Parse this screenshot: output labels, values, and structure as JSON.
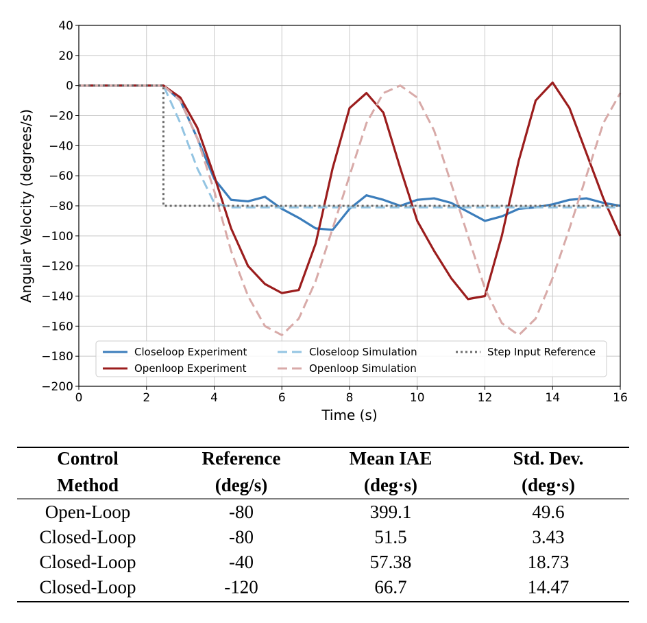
{
  "chart_data": {
    "type": "line",
    "xlabel": "Time (s)",
    "ylabel": "Angular Velocity (degrees/s)",
    "x": [
      0,
      0.5,
      1,
      1.5,
      2,
      2.5,
      3,
      3.5,
      4,
      4.5,
      5,
      5.5,
      6,
      6.5,
      7,
      7.5,
      8,
      8.5,
      9,
      9.5,
      10,
      10.5,
      11,
      11.5,
      12,
      12.5,
      13,
      13.5,
      14,
      14.5,
      15,
      15.5,
      16
    ],
    "series": [
      {
        "name": "Closeloop Experiment",
        "color": "#3b7dbb",
        "style": "solid",
        "values": [
          0,
          0,
          0,
          0,
          0,
          0,
          -10,
          -35,
          -62,
          -76,
          -77,
          -74,
          -82,
          -88,
          -95,
          -96,
          -82,
          -73,
          -76,
          -80,
          -76,
          -75,
          -78,
          -84,
          -90,
          -87,
          -82,
          -81,
          -79,
          -76,
          -75,
          -78,
          -80
        ]
      },
      {
        "name": "Openloop Experiment",
        "color": "#9b1d1d",
        "style": "solid",
        "values": [
          0,
          0,
          0,
          0,
          0,
          0,
          -8,
          -28,
          -60,
          -95,
          -120,
          -132,
          -138,
          -136,
          -105,
          -55,
          -15,
          -5,
          -18,
          -55,
          -90,
          -110,
          -128,
          -142,
          -140,
          -100,
          -50,
          -10,
          2,
          -15,
          -45,
          -75,
          -100
        ]
      },
      {
        "name": "Closeloop Simulation",
        "color": "#93c4e2",
        "style": "dashed",
        "values": [
          0,
          0,
          0,
          0,
          0,
          0,
          -25,
          -55,
          -78,
          -81,
          -81,
          -81,
          -81,
          -81,
          -81,
          -81,
          -81,
          -81,
          -81,
          -81,
          -81,
          -81,
          -81,
          -81,
          -81,
          -81,
          -81,
          -81,
          -81,
          -81,
          -81,
          -81,
          -81
        ]
      },
      {
        "name": "Openloop Simulation",
        "color": "#d8aaa8",
        "style": "dashed",
        "values": [
          0,
          0,
          0,
          0,
          0,
          0,
          -10,
          -35,
          -70,
          -110,
          -140,
          -160,
          -166,
          -155,
          -130,
          -95,
          -60,
          -25,
          -5,
          0,
          -8,
          -30,
          -65,
          -100,
          -135,
          -158,
          -166,
          -155,
          -128,
          -95,
          -60,
          -25,
          -5
        ]
      },
      {
        "name": "Step Input Reference",
        "color": "#6b6b6b",
        "style": "dotted",
        "x": [
          0,
          2.5,
          2.5,
          16
        ],
        "values": [
          0,
          0,
          -80,
          -80
        ]
      }
    ],
    "xlim": [
      0,
      16
    ],
    "ylim": [
      -200,
      40
    ],
    "xticks": [
      0,
      2,
      4,
      6,
      8,
      10,
      12,
      14,
      16
    ],
    "yticks": [
      {
        "value": -200,
        "label": "−200"
      },
      {
        "value": -180,
        "label": "−180"
      },
      {
        "value": -160,
        "label": "−160"
      },
      {
        "value": -140,
        "label": "−140"
      },
      {
        "value": -120,
        "label": "−120"
      },
      {
        "value": -100,
        "label": "−100"
      },
      {
        "value": -80,
        "label": "−80"
      },
      {
        "value": -60,
        "label": "−60"
      },
      {
        "value": -40,
        "label": "−40"
      },
      {
        "value": -20,
        "label": "−20"
      },
      0,
      20,
      40
    ],
    "grid": true,
    "legend": "lower center"
  },
  "table": {
    "header": [
      [
        "Control",
        "Method"
      ],
      [
        "Reference",
        "(deg/s)"
      ],
      [
        "Mean IAE",
        "(deg·s)"
      ],
      [
        "Std. Dev.",
        "(deg·s)"
      ]
    ],
    "rows": [
      [
        "Open-Loop",
        "-80",
        "399.1",
        "49.6"
      ],
      [
        "Closed-Loop",
        "-80",
        "51.5",
        "3.43"
      ],
      [
        "Closed-Loop",
        "-40",
        "57.38",
        "18.73"
      ],
      [
        "Closed-Loop",
        "-120",
        "66.7",
        "14.47"
      ]
    ]
  }
}
